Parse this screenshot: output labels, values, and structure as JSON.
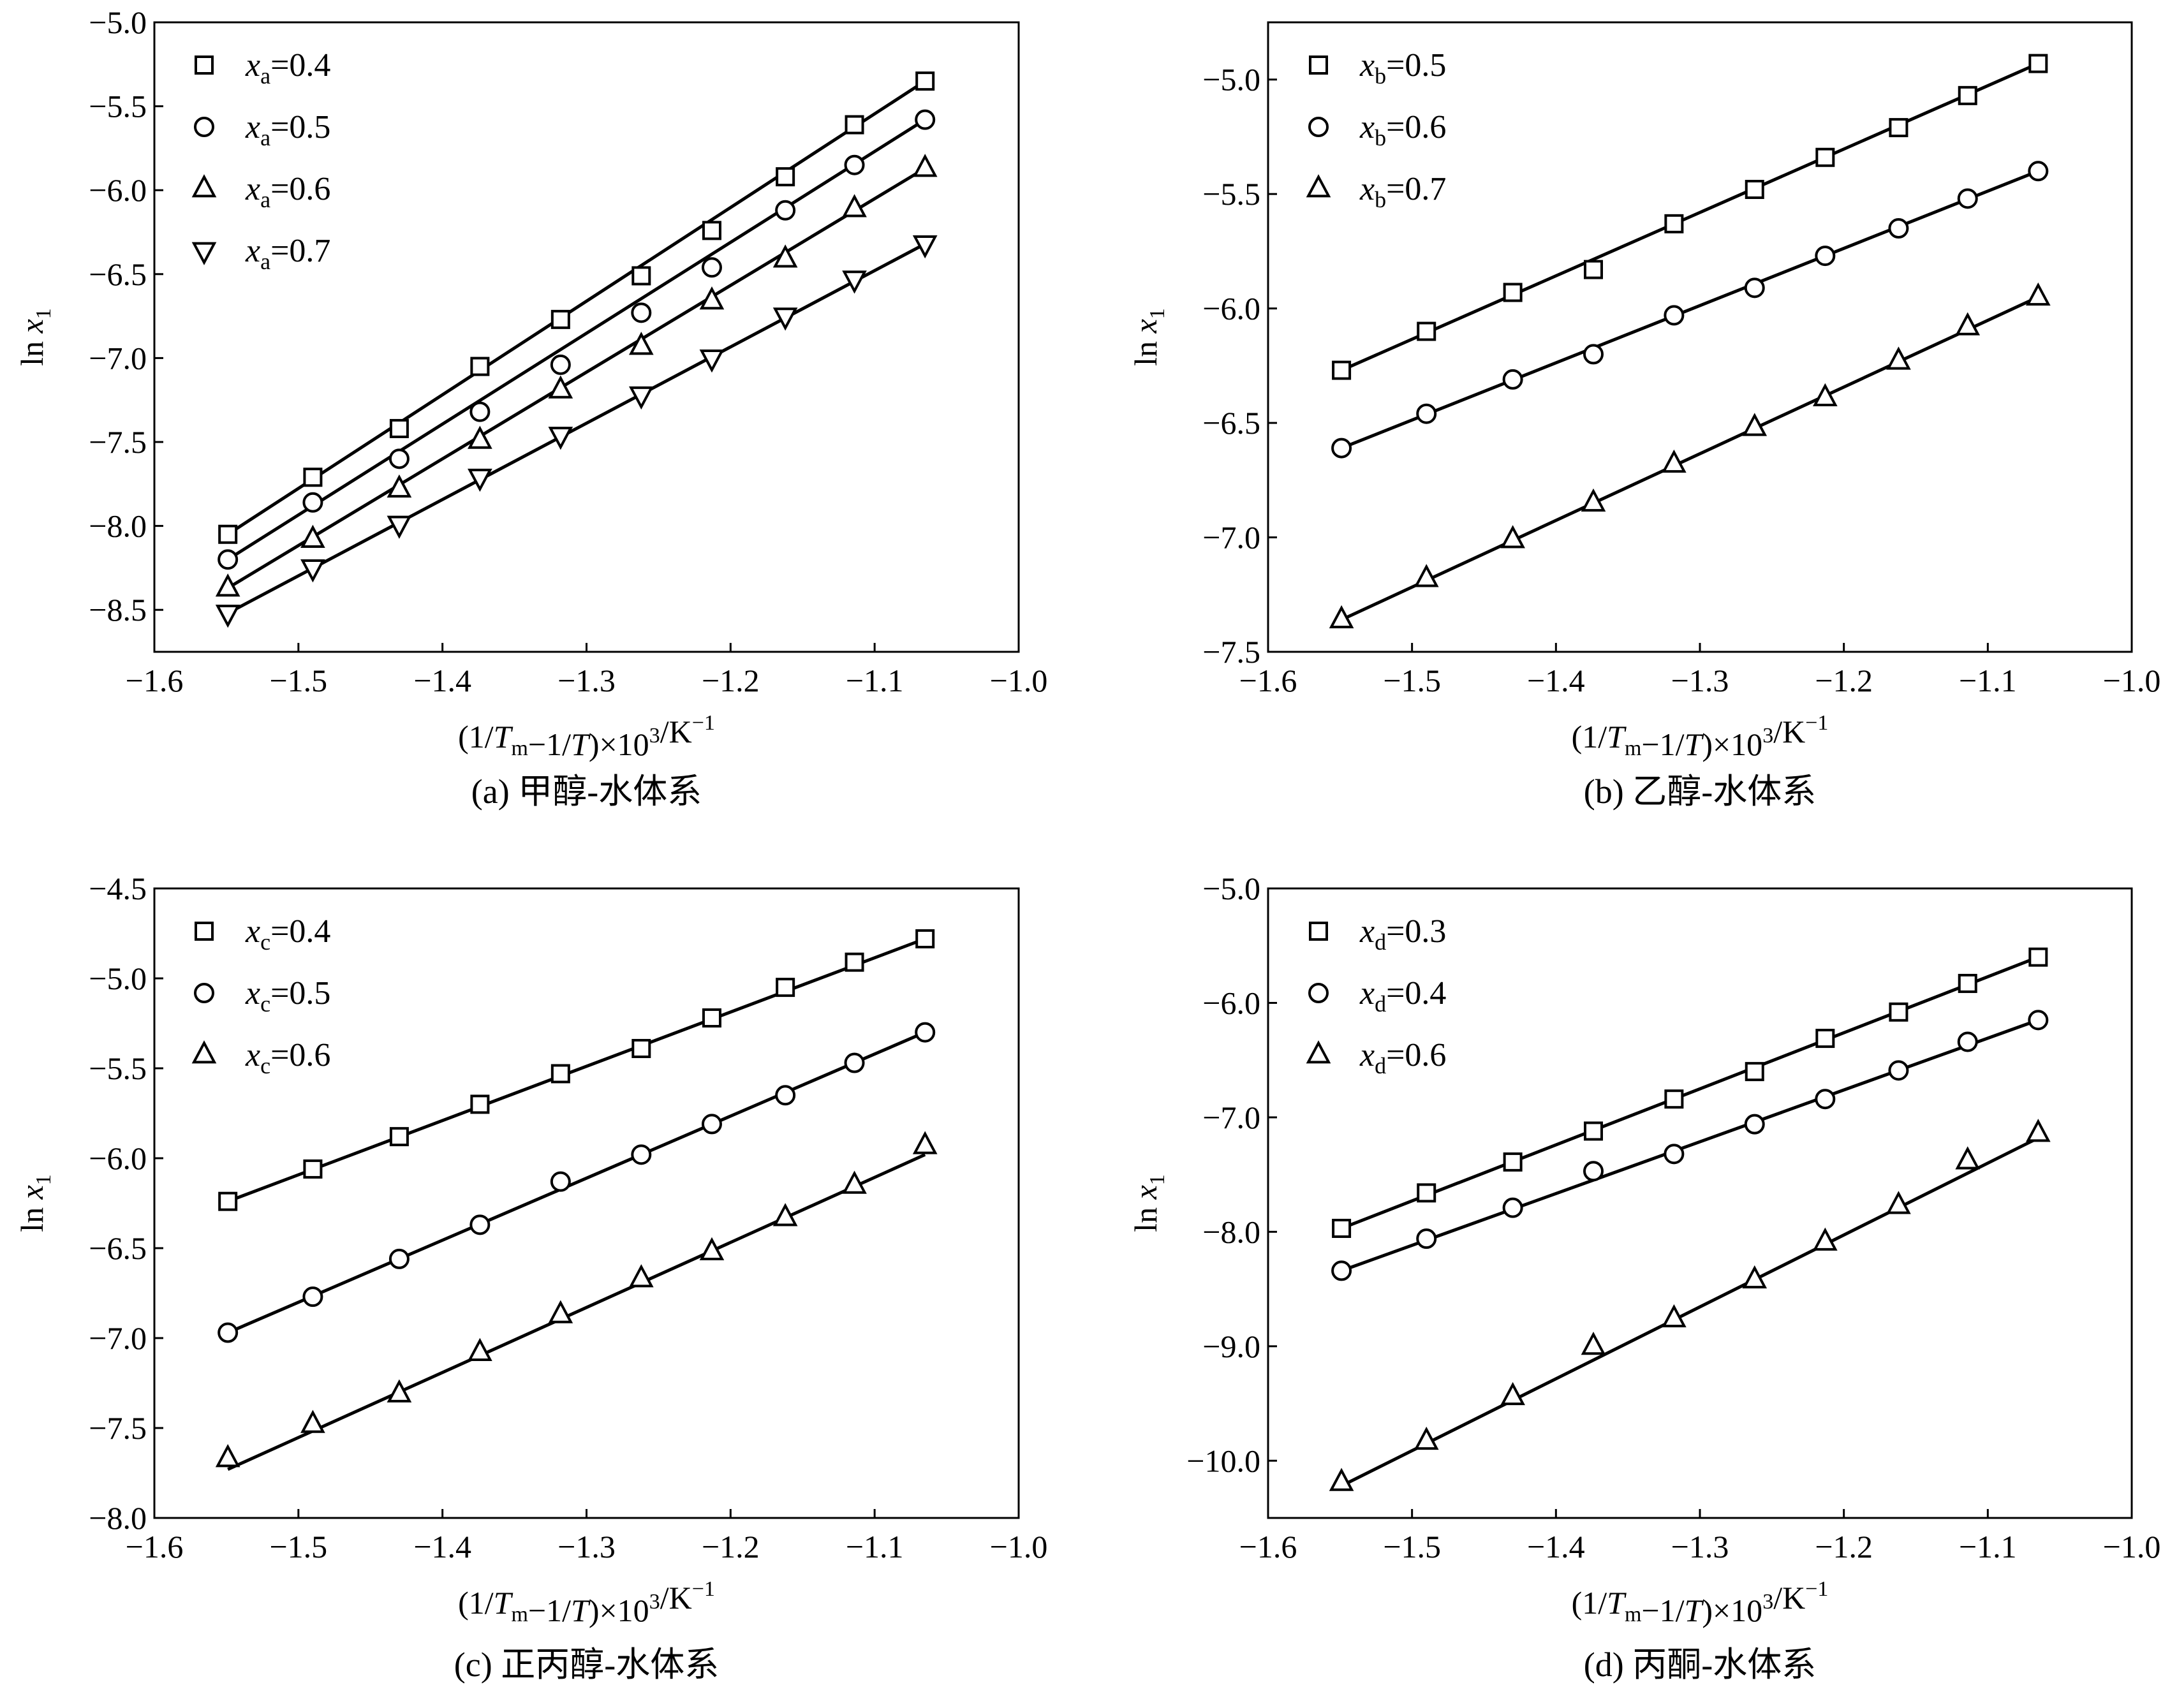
{
  "chart_data": [
    {
      "type": "scatter",
      "panel_id": "a",
      "caption": "(a) 甲醇-水体系",
      "xlabel": "(1/Tm−1/T)×10³/K⁻¹",
      "ylabel": "ln x1",
      "xlim": [
        -1.6,
        -1.0
      ],
      "ylim": [
        -8.75,
        -5.0
      ],
      "xticks": [
        -1.6,
        -1.5,
        -1.4,
        -1.3,
        -1.2,
        -1.1,
        -1.0
      ],
      "yticks": [
        -5.0,
        -5.5,
        -6.0,
        -6.5,
        -7.0,
        -7.5,
        -8.0,
        -8.5
      ],
      "x": [
        -1.549,
        -1.49,
        -1.43,
        -1.374,
        -1.318,
        -1.262,
        -1.213,
        -1.162,
        -1.114,
        -1.065
      ],
      "legend_position": "top-left",
      "series": [
        {
          "name": "xa=0.4",
          "legend_var": "x",
          "legend_sub": "a",
          "legend_value": "=0.4",
          "marker": "square",
          "values": [
            -8.05,
            -7.71,
            -7.42,
            -7.05,
            -6.77,
            -6.51,
            -6.24,
            -5.92,
            -5.61,
            -5.35
          ],
          "fit": [
            [
              -1.549,
              -8.05
            ],
            [
              -1.065,
              -5.35
            ]
          ]
        },
        {
          "name": "xa=0.5",
          "legend_var": "x",
          "legend_sub": "a",
          "legend_value": "=0.5",
          "marker": "circle",
          "values": [
            -8.2,
            -7.86,
            -7.6,
            -7.32,
            -7.04,
            -6.73,
            -6.46,
            -6.12,
            -5.85,
            -5.58
          ],
          "fit": [
            [
              -1.549,
              -8.2
            ],
            [
              -1.065,
              -5.58
            ]
          ]
        },
        {
          "name": "xa=0.6",
          "legend_var": "x",
          "legend_sub": "a",
          "legend_value": "=0.6",
          "marker": "triangle-up",
          "values": [
            -8.37,
            -8.08,
            -7.78,
            -7.49,
            -7.19,
            -6.93,
            -6.66,
            -6.41,
            -6.11,
            -5.87
          ],
          "fit": [
            [
              -1.549,
              -8.37
            ],
            [
              -1.065,
              -5.87
            ]
          ]
        },
        {
          "name": "xa=0.7",
          "legend_var": "x",
          "legend_sub": "a",
          "legend_value": "=0.7",
          "marker": "triangle-down",
          "values": [
            -8.52,
            -8.25,
            -7.99,
            -7.71,
            -7.46,
            -7.22,
            -7.0,
            -6.75,
            -6.53,
            -6.32
          ],
          "fit": [
            [
              -1.549,
              -8.52
            ],
            [
              -1.065,
              -6.32
            ]
          ]
        }
      ]
    },
    {
      "type": "scatter",
      "panel_id": "b",
      "caption": "(b) 乙醇-水体系",
      "xlabel": "(1/Tm−1/T)×10³/K⁻¹",
      "ylabel": "ln x1",
      "xlim": [
        -1.6,
        -1.0
      ],
      "ylim": [
        -7.5,
        -4.75
      ],
      "xticks": [
        -1.6,
        -1.5,
        -1.4,
        -1.3,
        -1.2,
        -1.1,
        -1.0
      ],
      "yticks": [
        -5.0,
        -5.5,
        -6.0,
        -6.5,
        -7.0,
        -7.5
      ],
      "x": [
        -1.549,
        -1.49,
        -1.43,
        -1.374,
        -1.318,
        -1.262,
        -1.213,
        -1.162,
        -1.114,
        -1.065
      ],
      "legend_position": "top-left",
      "series": [
        {
          "name": "xb=0.5",
          "legend_var": "x",
          "legend_sub": "b",
          "legend_value": "=0.5",
          "marker": "square",
          "values": [
            -6.27,
            -6.1,
            -5.93,
            -5.83,
            -5.63,
            -5.48,
            -5.34,
            -5.21,
            -5.07,
            -4.93
          ],
          "fit": [
            [
              -1.549,
              -6.27
            ],
            [
              -1.065,
              -4.93
            ]
          ]
        },
        {
          "name": "xb=0.6",
          "legend_var": "x",
          "legend_sub": "b",
          "legend_value": "=0.6",
          "marker": "circle",
          "values": [
            -6.61,
            -6.46,
            -6.31,
            -6.2,
            -6.03,
            -5.91,
            -5.77,
            -5.65,
            -5.52,
            -5.4
          ],
          "fit": [
            [
              -1.549,
              -6.61
            ],
            [
              -1.065,
              -5.4
            ]
          ]
        },
        {
          "name": "xb=0.7",
          "legend_var": "x",
          "legend_sub": "b",
          "legend_value": "=0.7",
          "marker": "triangle-up",
          "values": [
            -7.36,
            -7.18,
            -7.01,
            -6.85,
            -6.68,
            -6.52,
            -6.39,
            -6.23,
            -6.08,
            -5.95
          ],
          "fit": [
            [
              -1.549,
              -7.36
            ],
            [
              -1.065,
              -5.95
            ]
          ]
        }
      ]
    },
    {
      "type": "scatter",
      "panel_id": "c",
      "caption": "(c) 正丙醇-水体系",
      "xlabel": "(1/Tm−1/T)×10³/K⁻¹",
      "ylabel": "ln x1",
      "xlim": [
        -1.6,
        -1.0
      ],
      "ylim": [
        -8.0,
        -4.5
      ],
      "xticks": [
        -1.6,
        -1.5,
        -1.4,
        -1.3,
        -1.2,
        -1.1,
        -1.0
      ],
      "yticks": [
        -4.5,
        -5.0,
        -5.5,
        -6.0,
        -6.5,
        -7.0,
        -7.5,
        -8.0
      ],
      "x": [
        -1.549,
        -1.49,
        -1.43,
        -1.374,
        -1.318,
        -1.262,
        -1.213,
        -1.162,
        -1.114,
        -1.065
      ],
      "legend_position": "top-left",
      "series": [
        {
          "name": "xc=0.4",
          "legend_var": "x",
          "legend_sub": "c",
          "legend_value": "=0.4",
          "marker": "square",
          "values": [
            -6.24,
            -6.06,
            -5.88,
            -5.7,
            -5.53,
            -5.39,
            -5.22,
            -5.05,
            -4.91,
            -4.78
          ],
          "fit": [
            [
              -1.549,
              -6.24
            ],
            [
              -1.065,
              -4.78
            ]
          ]
        },
        {
          "name": "xc=0.5",
          "legend_var": "x",
          "legend_sub": "c",
          "legend_value": "=0.5",
          "marker": "circle",
          "values": [
            -6.97,
            -6.77,
            -6.56,
            -6.37,
            -6.13,
            -5.98,
            -5.81,
            -5.65,
            -5.47,
            -5.3
          ],
          "fit": [
            [
              -1.549,
              -6.97
            ],
            [
              -1.065,
              -5.3
            ]
          ]
        },
        {
          "name": "xc=0.6",
          "legend_var": "x",
          "legend_sub": "c",
          "legend_value": "=0.6",
          "marker": "triangle-up",
          "values": [
            -7.67,
            -7.48,
            -7.31,
            -7.08,
            -6.87,
            -6.67,
            -6.52,
            -6.33,
            -6.15,
            -5.93
          ],
          "fit": [
            [
              -1.549,
              -7.73
            ],
            [
              -1.065,
              -5.98
            ]
          ]
        }
      ]
    },
    {
      "type": "scatter",
      "panel_id": "d",
      "caption": "(d) 丙酮-水体系",
      "xlabel": "(1/Tm−1/T)×10³/K⁻¹",
      "ylabel": "ln x1",
      "xlim": [
        -1.6,
        -1.0
      ],
      "ylim": [
        -10.5,
        -5.0
      ],
      "xticks": [
        -1.6,
        -1.5,
        -1.4,
        -1.3,
        -1.2,
        -1.1,
        -1.0
      ],
      "yticks": [
        -5.0,
        -6.0,
        -7.0,
        -8.0,
        -9.0,
        -10.0
      ],
      "x": [
        -1.549,
        -1.49,
        -1.43,
        -1.374,
        -1.318,
        -1.262,
        -1.213,
        -1.162,
        -1.114,
        -1.065
      ],
      "legend_position": "top-left",
      "series": [
        {
          "name": "xd=0.3",
          "legend_var": "x",
          "legend_sub": "d",
          "legend_value": "=0.3",
          "marker": "square",
          "values": [
            -7.97,
            -7.66,
            -7.39,
            -7.12,
            -6.84,
            -6.6,
            -6.31,
            -6.08,
            -5.83,
            -5.6
          ],
          "fit": [
            [
              -1.549,
              -7.97
            ],
            [
              -1.065,
              -5.6
            ]
          ]
        },
        {
          "name": "xd=0.4",
          "legend_var": "x",
          "legend_sub": "d",
          "legend_value": "=0.4",
          "marker": "circle",
          "values": [
            -8.34,
            -8.06,
            -7.79,
            -7.47,
            -7.32,
            -7.06,
            -6.84,
            -6.59,
            -6.34,
            -6.15
          ],
          "fit": [
            [
              -1.549,
              -8.34
            ],
            [
              -1.065,
              -6.15
            ]
          ]
        },
        {
          "name": "xd=0.6",
          "legend_var": "x",
          "legend_sub": "d",
          "legend_value": "=0.6",
          "marker": "triangle-up",
          "values": [
            -10.19,
            -9.83,
            -9.44,
            -9.0,
            -8.76,
            -8.42,
            -8.09,
            -7.77,
            -7.38,
            -7.14
          ],
          "fit": [
            [
              -1.549,
              -10.22
            ],
            [
              -1.065,
              -7.18
            ]
          ]
        }
      ]
    }
  ]
}
